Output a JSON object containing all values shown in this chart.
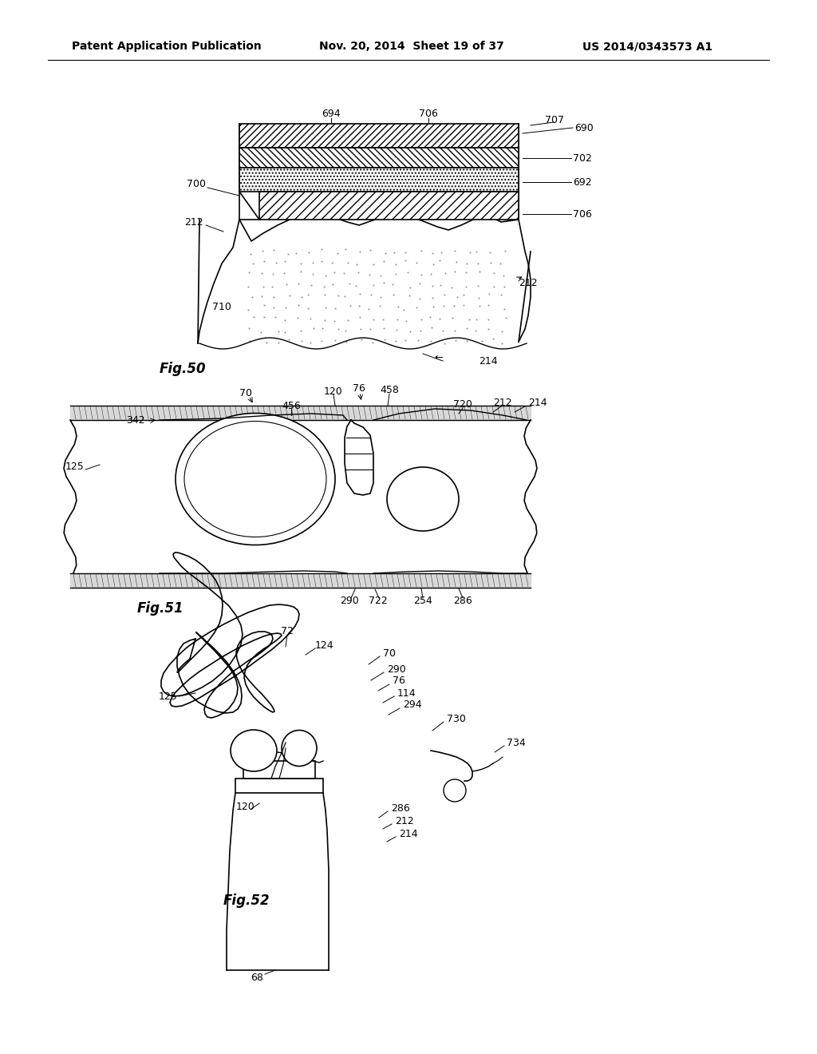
{
  "background_color": "#ffffff",
  "header_left": "Patent Application Publication",
  "header_middle": "Nov. 20, 2014  Sheet 19 of 37",
  "header_right": "US 2014/0343573 A1",
  "header_fontsize": 11,
  "fig50_label": "Fig.50",
  "fig51_label": "Fig.51",
  "fig52_label": "Fig.52"
}
